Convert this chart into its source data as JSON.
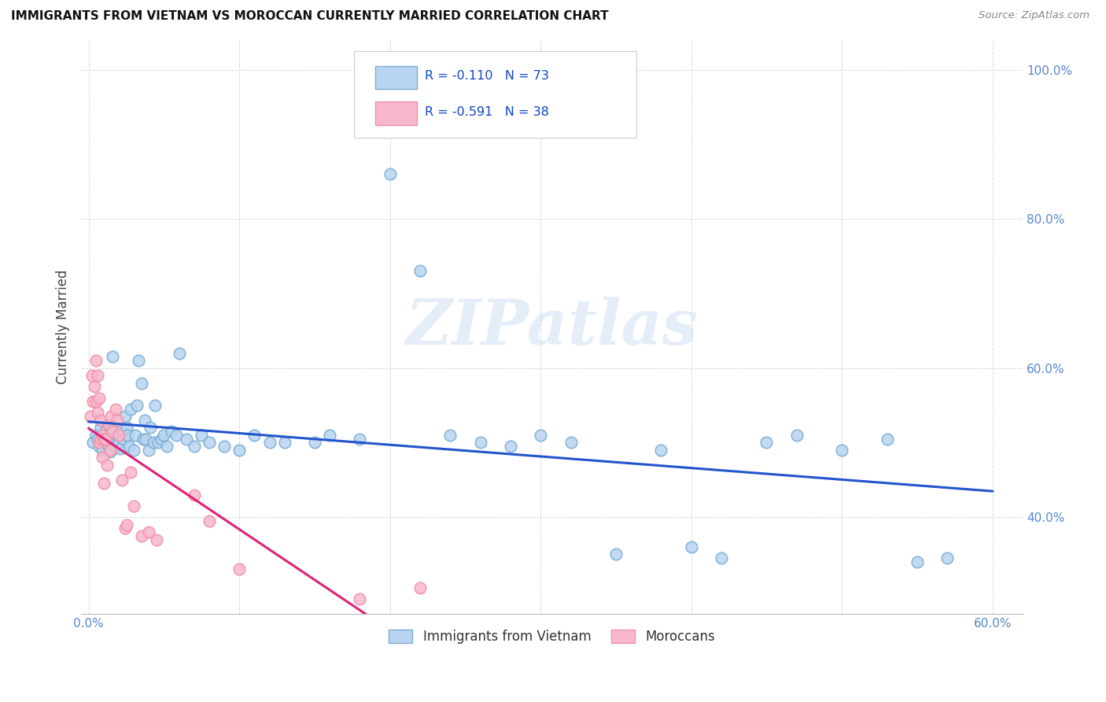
{
  "title": "IMMIGRANTS FROM VIETNAM VS MOROCCAN CURRENTLY MARRIED CORRELATION CHART",
  "source": "Source: ZipAtlas.com",
  "ylabel": "Currently Married",
  "legend1_label": "Immigrants from Vietnam",
  "legend2_label": "Moroccans",
  "R1": "-0.110",
  "N1": "73",
  "R2": "-0.591",
  "N2": "38",
  "blue_color_face": "#b8d4f0",
  "blue_color_edge": "#7badd4",
  "pink_color_face": "#f8b8cc",
  "pink_color_edge": "#f090a8",
  "line_blue": "#2255cc",
  "line_pink": "#dd2277",
  "watermark": "ZIPatlas",
  "xlim": [
    -0.005,
    0.62
  ],
  "ylim": [
    0.27,
    1.04
  ],
  "xtick_positions": [
    0.0,
    0.1,
    0.2,
    0.3,
    0.4,
    0.5,
    0.6
  ],
  "xtick_labels": [
    "0.0%",
    "",
    "",
    "",
    "",
    "",
    "60.0%"
  ],
  "ytick_positions": [
    0.4,
    0.6,
    0.8,
    1.0
  ],
  "ytick_labels": [
    "40.0%",
    "60.0%",
    "80.0%",
    "100.0%"
  ],
  "blue_x": [
    0.003,
    0.005,
    0.006,
    0.007,
    0.008,
    0.009,
    0.01,
    0.011,
    0.012,
    0.013,
    0.014,
    0.015,
    0.016,
    0.017,
    0.018,
    0.019,
    0.02,
    0.021,
    0.022,
    0.023,
    0.024,
    0.025,
    0.026,
    0.027,
    0.028,
    0.03,
    0.031,
    0.032,
    0.033,
    0.035,
    0.036,
    0.037,
    0.038,
    0.04,
    0.041,
    0.043,
    0.044,
    0.046,
    0.048,
    0.05,
    0.052,
    0.055,
    0.058,
    0.06,
    0.065,
    0.07,
    0.075,
    0.08,
    0.09,
    0.1,
    0.11,
    0.12,
    0.13,
    0.15,
    0.16,
    0.18,
    0.2,
    0.22,
    0.24,
    0.26,
    0.28,
    0.3,
    0.32,
    0.35,
    0.38,
    0.4,
    0.42,
    0.45,
    0.47,
    0.5,
    0.53,
    0.55,
    0.57
  ],
  "blue_y": [
    0.5,
    0.51,
    0.505,
    0.495,
    0.52,
    0.49,
    0.505,
    0.515,
    0.498,
    0.51,
    0.488,
    0.52,
    0.615,
    0.505,
    0.495,
    0.51,
    0.5,
    0.492,
    0.515,
    0.505,
    0.535,
    0.52,
    0.51,
    0.495,
    0.545,
    0.49,
    0.51,
    0.55,
    0.61,
    0.58,
    0.505,
    0.53,
    0.505,
    0.49,
    0.52,
    0.5,
    0.55,
    0.5,
    0.505,
    0.51,
    0.495,
    0.515,
    0.51,
    0.62,
    0.505,
    0.495,
    0.51,
    0.5,
    0.495,
    0.49,
    0.51,
    0.5,
    0.5,
    0.5,
    0.51,
    0.505,
    0.86,
    0.73,
    0.51,
    0.5,
    0.495,
    0.51,
    0.5,
    0.35,
    0.49,
    0.36,
    0.345,
    0.5,
    0.51,
    0.49,
    0.505,
    0.34,
    0.345
  ],
  "pink_x": [
    0.001,
    0.002,
    0.003,
    0.004,
    0.005,
    0.005,
    0.006,
    0.006,
    0.007,
    0.007,
    0.008,
    0.008,
    0.009,
    0.009,
    0.01,
    0.01,
    0.011,
    0.012,
    0.013,
    0.014,
    0.015,
    0.016,
    0.018,
    0.019,
    0.02,
    0.022,
    0.024,
    0.025,
    0.028,
    0.03,
    0.035,
    0.04,
    0.045,
    0.07,
    0.08,
    0.1,
    0.18,
    0.22
  ],
  "pink_y": [
    0.535,
    0.59,
    0.555,
    0.575,
    0.61,
    0.555,
    0.59,
    0.54,
    0.56,
    0.5,
    0.505,
    0.53,
    0.51,
    0.48,
    0.505,
    0.445,
    0.505,
    0.47,
    0.525,
    0.49,
    0.535,
    0.515,
    0.545,
    0.53,
    0.51,
    0.45,
    0.385,
    0.39,
    0.46,
    0.415,
    0.375,
    0.38,
    0.37,
    0.43,
    0.395,
    0.33,
    0.29,
    0.305
  ]
}
